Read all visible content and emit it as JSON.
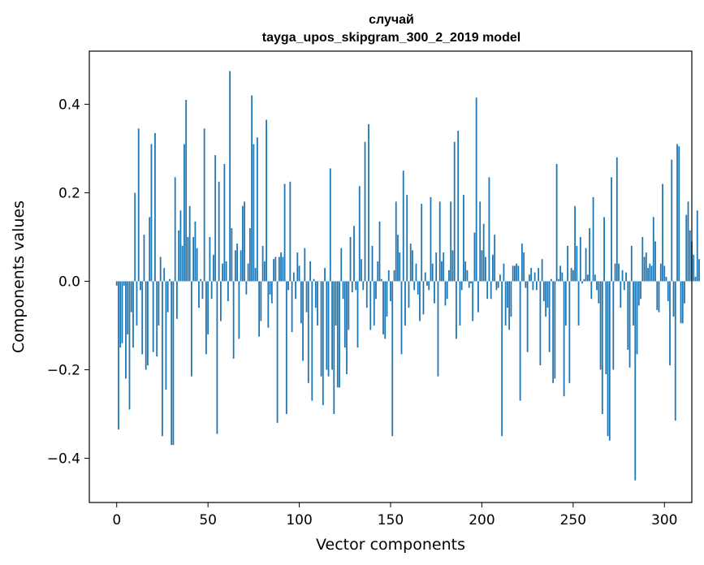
{
  "chart_data": {
    "type": "bar",
    "title": "случай",
    "subtitle": "tayga_upos_skipgram_300_2_2019 model",
    "xlabel": "Vector components",
    "ylabel": "Components values",
    "xlim": [
      -15,
      315
    ],
    "ylim": [
      -0.5,
      0.52
    ],
    "xticks": [
      0,
      50,
      100,
      150,
      200,
      250,
      300
    ],
    "yticks": [
      -0.4,
      -0.2,
      0.0,
      0.2,
      0.4
    ],
    "ytick_labels": [
      "−0.4",
      "−0.2",
      "0.0",
      "0.2",
      "0.4"
    ],
    "bar_color": "#1f77b4",
    "values": [
      -0.01,
      -0.335,
      -0.15,
      -0.14,
      -0.01,
      -0.22,
      -0.12,
      -0.29,
      -0.07,
      -0.15,
      0.2,
      -0.1,
      0.345,
      -0.02,
      -0.165,
      0.105,
      -0.2,
      -0.19,
      0.145,
      0.31,
      -0.16,
      0.335,
      -0.17,
      -0.1,
      0.055,
      -0.35,
      0.03,
      -0.245,
      -0.07,
      0.005,
      -0.37,
      -0.37,
      0.235,
      -0.085,
      0.115,
      0.16,
      0.08,
      0.31,
      0.41,
      0.1,
      0.17,
      -0.215,
      0.1,
      0.135,
      0.075,
      -0.06,
      0.005,
      -0.04,
      0.345,
      -0.165,
      -0.12,
      0.1,
      -0.04,
      0.06,
      0.285,
      -0.345,
      0.225,
      -0.09,
      0.04,
      0.265,
      0.045,
      -0.045,
      0.475,
      0.12,
      -0.175,
      0.07,
      0.085,
      -0.13,
      0.07,
      0.17,
      0.18,
      -0.03,
      0.04,
      0.12,
      0.42,
      0.31,
      0.03,
      0.325,
      -0.125,
      -0.09,
      0.08,
      0.045,
      0.365,
      -0.105,
      -0.03,
      -0.05,
      0.05,
      0.055,
      -0.32,
      0.055,
      0.065,
      0.055,
      0.22,
      -0.3,
      -0.02,
      0.225,
      -0.115,
      0.02,
      -0.04,
      0.065,
      0.035,
      -0.095,
      -0.18,
      0.075,
      -0.07,
      -0.23,
      0.045,
      -0.27,
      0.005,
      -0.06,
      -0.1,
      0.0,
      -0.215,
      -0.28,
      0.03,
      -0.2,
      -0.215,
      0.255,
      -0.2,
      -0.3,
      -0.1,
      -0.24,
      -0.24,
      0.075,
      -0.04,
      -0.15,
      -0.21,
      -0.11,
      0.1,
      -0.025,
      0.125,
      -0.02,
      -0.15,
      0.215,
      0.05,
      -0.02,
      0.315,
      -0.06,
      0.355,
      -0.11,
      0.08,
      -0.1,
      -0.04,
      0.045,
      0.135,
      0.005,
      -0.12,
      -0.13,
      -0.08,
      0.025,
      -0.045,
      -0.35,
      0.025,
      0.18,
      0.105,
      0.065,
      -0.165,
      0.25,
      -0.1,
      0.195,
      -0.06,
      0.085,
      0.07,
      -0.02,
      0.04,
      -0.03,
      -0.09,
      0.175,
      -0.075,
      0.02,
      -0.01,
      -0.02,
      0.19,
      0.04,
      -0.05,
      0.065,
      -0.215,
      0.18,
      0.045,
      0.065,
      -0.055,
      -0.04,
      0.025,
      0.18,
      0.07,
      0.315,
      -0.13,
      0.34,
      -0.1,
      -0.02,
      0.195,
      0.045,
      0.025,
      -0.015,
      -0.005,
      -0.09,
      0.11,
      0.415,
      -0.07,
      0.18,
      0.07,
      0.13,
      0.055,
      -0.04,
      0.235,
      -0.04,
      0.06,
      0.105,
      -0.02,
      -0.015,
      0.015,
      -0.35,
      0.04,
      -0.1,
      -0.06,
      -0.11,
      -0.08,
      0.035,
      0.035,
      0.04,
      0.035,
      -0.27,
      0.085,
      0.065,
      -0.015,
      -0.16,
      0.015,
      0.03,
      -0.02,
      0.02,
      -0.02,
      0.03,
      -0.19,
      0.05,
      -0.045,
      -0.08,
      -0.06,
      -0.16,
      0.005,
      -0.23,
      -0.22,
      0.265,
      0.005,
      0.035,
      0.02,
      -0.26,
      -0.1,
      0.08,
      -0.23,
      0.03,
      0.025,
      0.17,
      0.08,
      -0.1,
      0.1,
      -0.005,
      0.005,
      0.075,
      0.015,
      0.12,
      -0.04,
      0.19,
      0.015,
      -0.02,
      -0.05,
      -0.2,
      -0.3,
      0.145,
      -0.21,
      -0.35,
      -0.36,
      0.235,
      -0.2,
      0.04,
      0.28,
      0.04,
      -0.06,
      0.025,
      -0.02,
      0.02,
      -0.155,
      -0.195,
      0.08,
      -0.1,
      -0.45,
      -0.165,
      -0.055,
      -0.04,
      0.1,
      0.055,
      0.065,
      0.03,
      0.04,
      0.035,
      0.145,
      0.09,
      -0.065,
      -0.07,
      0.04,
      0.22,
      0.035,
      0.01,
      -0.045,
      -0.19,
      0.275,
      -0.08,
      -0.315,
      0.31,
      0.305,
      -0.095,
      -0.095,
      -0.05,
      0.15,
      0.18,
      0.115,
      0.09,
      0.06,
      0.01,
      0.16,
      0.05
    ]
  }
}
